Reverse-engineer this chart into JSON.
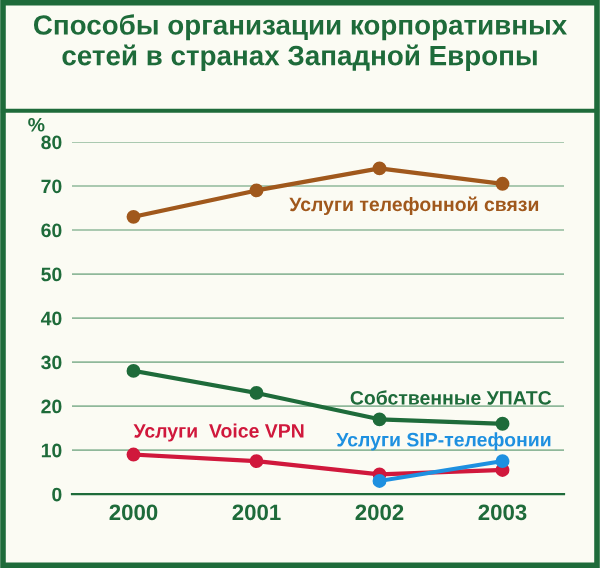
{
  "chart_data": {
    "type": "line",
    "title": "Способы организации корпоративных\nсетей в странах Западной Европы",
    "ylabel": "%",
    "categories": [
      "2000",
      "2001",
      "2002",
      "2003"
    ],
    "series": [
      {
        "name": "Услуги телефонной связи",
        "color": "#a0581c",
        "values": [
          63,
          69,
          74,
          70.5
        ]
      },
      {
        "name": "Собственные УПАТС",
        "color": "#1e6b3a",
        "values": [
          28,
          23,
          17,
          16
        ]
      },
      {
        "name": "Услуги  Voice VPN",
        "color": "#d0183c",
        "values": [
          9,
          7.5,
          4.5,
          5.5
        ]
      },
      {
        "name": "Услуги SIP-телефонии",
        "color": "#1e90e0",
        "values": [
          null,
          null,
          3,
          7.5
        ]
      }
    ],
    "ylim": [
      0,
      80
    ],
    "yticks": [
      0,
      10,
      20,
      30,
      40,
      50,
      60,
      70,
      80
    ],
    "grid": "y",
    "legend": false,
    "marker": "circle",
    "line_style": "solid"
  }
}
